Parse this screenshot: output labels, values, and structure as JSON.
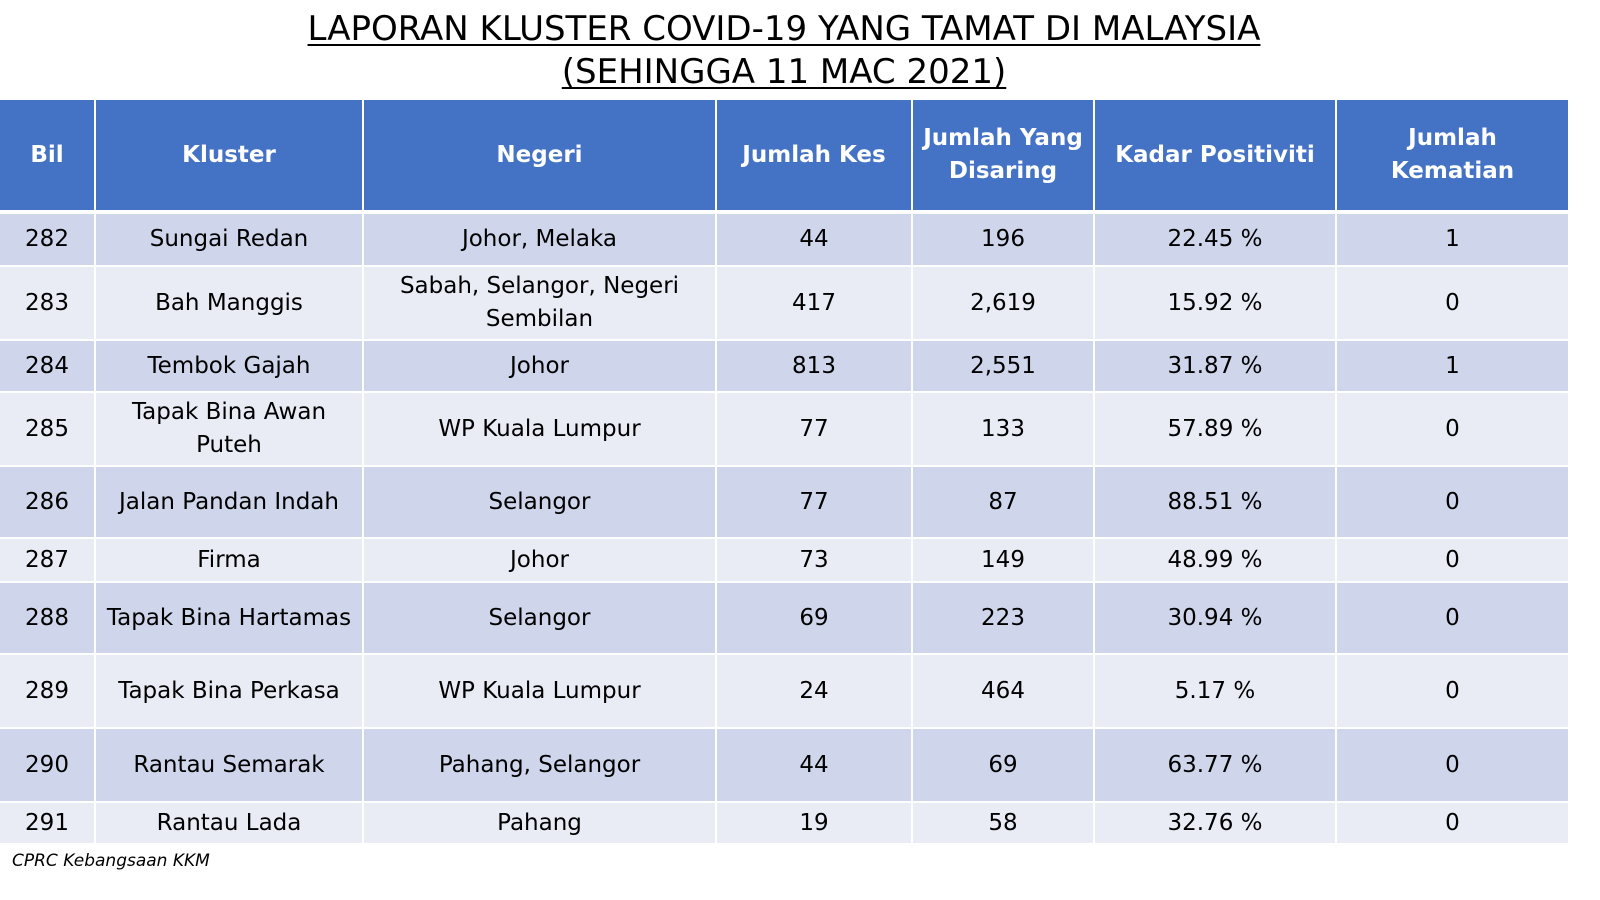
{
  "title": {
    "line1": "LAPORAN KLUSTER COVID-19 YANG TAMAT DI MALAYSIA",
    "line2": "(SEHINGGA  11 MAC 2021)"
  },
  "table": {
    "headers": {
      "bil": "Bil",
      "kluster": "Kluster",
      "negeri": "Negeri",
      "jumlah_kes": "Jumlah Kes",
      "jumlah_disaring": "Jumlah Yang Disaring",
      "kadar_positiviti": "Kadar Positiviti",
      "jumlah_kematian": "Jumlah Kematian"
    },
    "rows": [
      {
        "bil": "282",
        "kluster": "Sungai Redan",
        "negeri": "Johor, Melaka",
        "kes": "44",
        "disaring": "196",
        "positiviti": "22.45 %",
        "kematian": "1"
      },
      {
        "bil": "283",
        "kluster": "Bah Manggis",
        "negeri": "Sabah, Selangor, Negeri Sembilan",
        "kes": "417",
        "disaring": "2,619",
        "positiviti": "15.92 %",
        "kematian": "0"
      },
      {
        "bil": "284",
        "kluster": "Tembok Gajah",
        "negeri": "Johor",
        "kes": "813",
        "disaring": "2,551",
        "positiviti": "31.87 %",
        "kematian": "1"
      },
      {
        "bil": "285",
        "kluster": "Tapak Bina Awan Puteh",
        "negeri": "WP Kuala Lumpur",
        "kes": "77",
        "disaring": "133",
        "positiviti": "57.89 %",
        "kematian": "0"
      },
      {
        "bil": "286",
        "kluster": "Jalan Pandan Indah",
        "negeri": "Selangor",
        "kes": "77",
        "disaring": "87",
        "positiviti": "88.51 %",
        "kematian": "0"
      },
      {
        "bil": "287",
        "kluster": "Firma",
        "negeri": "Johor",
        "kes": "73",
        "disaring": "149",
        "positiviti": "48.99 %",
        "kematian": "0"
      },
      {
        "bil": "288",
        "kluster": "Tapak Bina Hartamas",
        "negeri": "Selangor",
        "kes": "69",
        "disaring": "223",
        "positiviti": "30.94 %",
        "kematian": "0"
      },
      {
        "bil": "289",
        "kluster": "Tapak Bina Perkasa",
        "negeri": "WP Kuala Lumpur",
        "kes": "24",
        "disaring": "464",
        "positiviti": "5.17 %",
        "kematian": "0"
      },
      {
        "bil": "290",
        "kluster": "Rantau Semarak",
        "negeri": "Pahang, Selangor",
        "kes": "44",
        "disaring": "69",
        "positiviti": "63.77 %",
        "kematian": "0"
      },
      {
        "bil": "291",
        "kluster": "Rantau Lada",
        "negeri": "Pahang",
        "kes": "19",
        "disaring": "58",
        "positiviti": "32.76 %",
        "kematian": "0"
      }
    ]
  },
  "footer": {
    "source": "CPRC Kebangsaan KKM"
  },
  "colors": {
    "header_bg": "#4472c4",
    "row_odd": "#cfd5ea",
    "row_even": "#e9ebf5"
  }
}
